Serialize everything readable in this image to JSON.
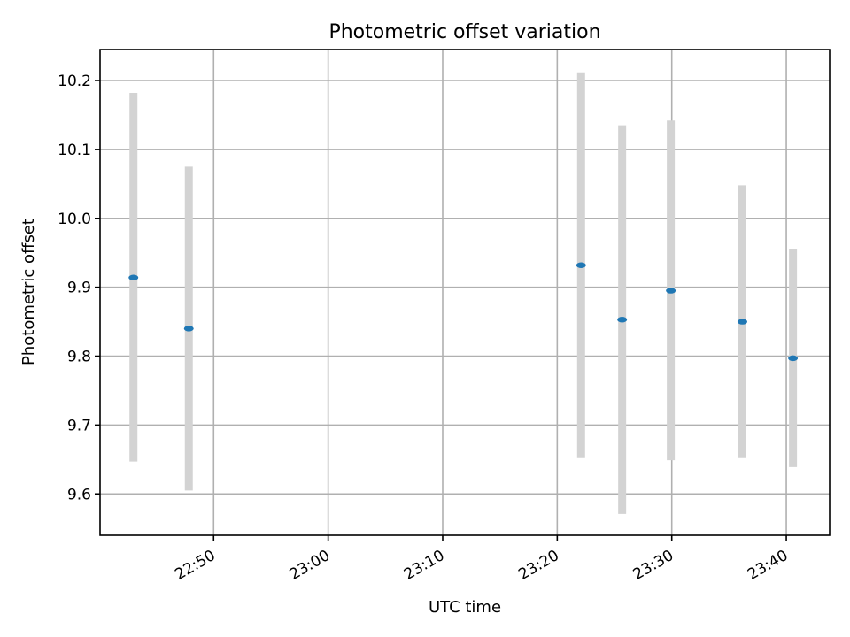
{
  "chart_data": {
    "type": "scatter",
    "title": "Photometric offset variation",
    "xlabel": "UTC time",
    "ylabel": "Photometric offset",
    "grid": true,
    "ylim": [
      9.54,
      10.245
    ],
    "xlim": [
      "22:40:05",
      "23:43:47"
    ],
    "x_ticks": [
      "22:50",
      "23:00",
      "23:10",
      "23:20",
      "23:30",
      "23:40"
    ],
    "y_ticks": [
      9.6,
      9.7,
      9.8,
      9.9,
      10.0,
      10.1,
      10.2
    ],
    "colors": {
      "marker": "#1f77b4",
      "errorbar": "#d3d3d3"
    },
    "series": [
      {
        "points": [
          {
            "x": "22:43:00",
            "y": 9.914,
            "y_low": 9.647,
            "y_high": 10.182
          },
          {
            "x": "22:47:50",
            "y": 9.84,
            "y_low": 9.605,
            "y_high": 10.075
          },
          {
            "x": "23:22:05",
            "y": 9.932,
            "y_low": 9.652,
            "y_high": 10.212
          },
          {
            "x": "23:25:40",
            "y": 9.853,
            "y_low": 9.571,
            "y_high": 10.135
          },
          {
            "x": "23:29:55",
            "y": 9.895,
            "y_low": 9.649,
            "y_high": 10.142
          },
          {
            "x": "23:36:10",
            "y": 9.85,
            "y_low": 9.652,
            "y_high": 10.048
          },
          {
            "x": "23:40:35",
            "y": 9.797,
            "y_low": 9.639,
            "y_high": 9.955
          }
        ]
      }
    ]
  }
}
